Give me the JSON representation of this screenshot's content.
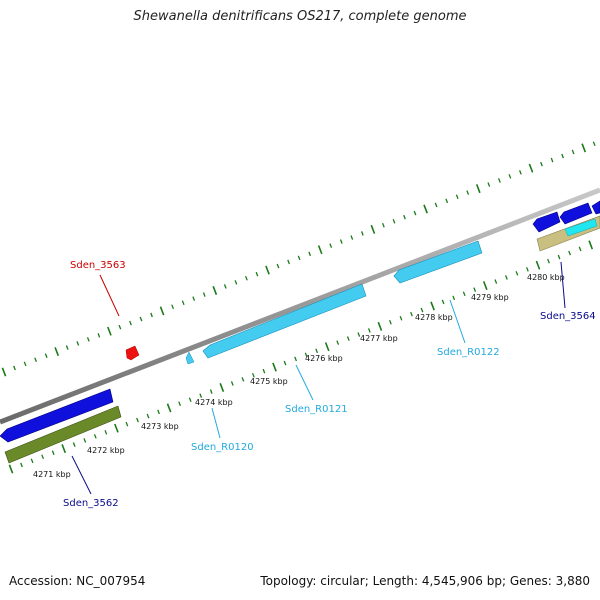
{
  "title": "Shewanella denitrificans OS217, complete genome",
  "footer": {
    "accession_label": "Accession:",
    "accession": "NC_007954",
    "topology_label": "Topology:",
    "topology": "circular",
    "length_label": "Length:",
    "length": "4,545,906 bp",
    "genes_label": "Genes:",
    "genes": "3,880"
  },
  "axis_ticks": [
    "4271 kbp",
    "4272 kbp",
    "4273 kbp",
    "4274 kbp",
    "4275 kbp",
    "4276 kbp",
    "4277 kbp",
    "4278 kbp",
    "4279 kbp",
    "4280 kbp"
  ],
  "gene_labels": [
    {
      "text": "Sden_3563",
      "color": "#cc0000"
    },
    {
      "text": "Sden_3562",
      "color": "#0a0a8a"
    },
    {
      "text": "Sden_R0120",
      "color": "#22aadd"
    },
    {
      "text": "Sden_R0121",
      "color": "#22aadd"
    },
    {
      "text": "Sden_R0122",
      "color": "#22aadd"
    },
    {
      "text": "Sden_3564",
      "color": "#0a0a8a"
    }
  ],
  "colors": {
    "backbone": "#888888",
    "tick": "#1a7a1a",
    "cds": "#1010dd",
    "rna": "#44ccf0",
    "olive": "#6a8a2a",
    "khaki": "#c8bf80",
    "cyan": "#20e6f0",
    "red": "#ee1111"
  }
}
